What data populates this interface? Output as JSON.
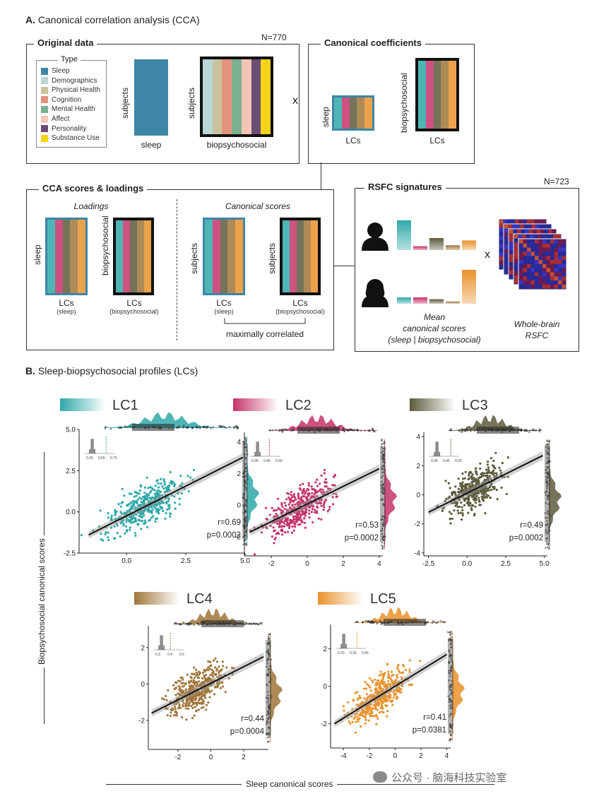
{
  "sectionA": {
    "letter": "A.",
    "title": "Canonical correlation analysis (CCA)",
    "original_data": {
      "title": "Original data",
      "n_label": "N=770",
      "legend_title": "Type",
      "legend": [
        {
          "label": "Sleep",
          "color": "#3d86a6"
        },
        {
          "label": "Demographics",
          "color": "#b9d6d6"
        },
        {
          "label": "Physical Health",
          "color": "#c9c39d"
        },
        {
          "label": "Cognition",
          "color": "#e3937c"
        },
        {
          "label": "Mental Health",
          "color": "#7bb191"
        },
        {
          "label": "Affect",
          "color": "#f3c5b4"
        },
        {
          "label": "Personality",
          "color": "#6a4d74"
        },
        {
          "label": "Substance Use",
          "color": "#f4d318"
        }
      ],
      "subjects_label": "subjects",
      "sleep_label": "sleep",
      "biopsychosocial_label": "biopsychosocial"
    },
    "times_symbol": "x",
    "canonical_coefficients": {
      "title": "Canonical coefficients",
      "sleep_label": "sleep",
      "biopsychosocial_label": "biopsychosocial",
      "lcs_label": "LCs"
    },
    "cca_scores": {
      "title": "CCA scores & loadings",
      "loadings_label": "Loadings",
      "canonical_scores_label": "Canonical scores",
      "sleep_label": "sleep",
      "biopsychosocial_label": "biopsychosocial",
      "subjects_label": "subjects",
      "lcs_label": "LCs",
      "sleep_sub": "(sleep)",
      "bio_sub": "(biopsychosocial)",
      "maximally_correlated": "maximally correlated"
    },
    "rsfc": {
      "title": "RSFC signatures",
      "n_label": "N=723",
      "times_symbol": "x",
      "mean_label_1": "Mean",
      "mean_label_2": "canonical scores",
      "mean_label_3": "(sleep | biopsychosocial)",
      "wb_label_1": "Whole-brain",
      "wb_label_2": "RSFC",
      "person1_bars": [
        0.62,
        0.08,
        0.25,
        0.1,
        0.2
      ],
      "person2_bars": [
        0.14,
        0.14,
        0.1,
        0.05,
        0.75
      ]
    },
    "lc_colors": [
      "#2fa8a8",
      "#c4346b",
      "#5d5a3c",
      "#a0763a",
      "#e9922c"
    ]
  },
  "sectionB": {
    "letter": "B.",
    "title": "Sleep-biopsychosocial profiles (LCs)",
    "y_axis_label": "Biopsychosocial canonical scores",
    "x_axis_label": "Sleep canonical scores",
    "watermark": "公众号 · 脑海科技实验室"
  },
  "chart_data": [
    {
      "type": "scatter",
      "title": "LC1",
      "color": "#2fa8a8",
      "r": "r=0.69",
      "p": "p=0.0002",
      "xlim": [
        -2,
        5
      ],
      "ylim": [
        -2.5,
        5
      ],
      "xticks": [
        0.0,
        2.5,
        5.0
      ],
      "xtick_labels": [
        "0.0",
        "2.5",
        "5.0"
      ],
      "yticks": [
        -2.5,
        0.0,
        2.5,
        5.0
      ],
      "ytick_labels": [
        "-2.5",
        "0.0",
        "2.5",
        "5.0"
      ],
      "line": {
        "x": [
          -1.6,
          4.9
        ],
        "y": [
          -1.4,
          3.3
        ]
      },
      "inset_ticks": [
        "0.35",
        "0.55",
        "0.75"
      ],
      "inset_dashed_frac": 0.72
    },
    {
      "type": "scatter",
      "title": "LC2",
      "color": "#c4346b",
      "r": "r=0.53",
      "p": "p=0.0002",
      "xlim": [
        -3.5,
        4.2
      ],
      "ylim": [
        -3.2,
        4.6
      ],
      "xticks": [
        -2,
        0,
        2,
        4
      ],
      "xtick_labels": [
        "-2",
        "0",
        "2",
        "4"
      ],
      "yticks": [
        -2,
        0,
        2,
        4
      ],
      "ytick_labels": [
        "-2",
        "0",
        "2",
        "4"
      ],
      "line": {
        "x": [
          -3.2,
          4.0
        ],
        "y": [
          -1.7,
          2.3
        ]
      },
      "inset_ticks": [
        "0.35",
        "0.45",
        "0.55"
      ],
      "inset_dashed_frac": 0.65
    },
    {
      "type": "scatter",
      "title": "LC3",
      "color": "#5d5a3c",
      "r": "r=0.49",
      "p": "p=0.0002",
      "xlim": [
        -2.8,
        5.2
      ],
      "ylim": [
        -4.2,
        4.3
      ],
      "xticks": [
        -2.5,
        0.0,
        2.5,
        5.0
      ],
      "xtick_labels": [
        "-2.5",
        "0.0",
        "2.5",
        "5.0"
      ],
      "yticks": [
        -4,
        -2,
        0,
        2,
        4
      ],
      "ytick_labels": [
        "-4",
        "-2",
        "0",
        "2",
        "4"
      ],
      "line": {
        "x": [
          -2.5,
          4.9
        ],
        "y": [
          -1.2,
          2.7
        ]
      },
      "inset_ticks": [
        "0.35",
        "0.45",
        "0.55"
      ],
      "inset_dashed_frac": 0.72
    },
    {
      "type": "scatter",
      "title": "LC4",
      "color": "#a0763a",
      "r": "r=0.44",
      "p": "p=0.0004",
      "xlim": [
        -3.8,
        3.5
      ],
      "ylim": [
        -3.6,
        3.2
      ],
      "xticks": [
        -2,
        0,
        2
      ],
      "xtick_labels": [
        "-2",
        "0",
        "2"
      ],
      "yticks": [
        -2,
        0,
        2
      ],
      "ytick_labels": [
        "-2",
        "0",
        "2"
      ],
      "line": {
        "x": [
          -3.6,
          3.2
        ],
        "y": [
          -1.6,
          1.5
        ]
      },
      "inset_ticks": [
        "0.3",
        "0.4",
        "0.5"
      ],
      "inset_dashed_frac": 0.55
    },
    {
      "type": "scatter",
      "title": "LC5",
      "color": "#e9922c",
      "r": "r=0.41",
      "p": "p=0.0381",
      "xlim": [
        -5,
        4.3
      ],
      "ylim": [
        -3.3,
        3.3
      ],
      "xticks": [
        -4,
        -2,
        0,
        2,
        4
      ],
      "xtick_labels": [
        "-4",
        "-2",
        "0",
        "2",
        "4"
      ],
      "yticks": [
        -2,
        0,
        2
      ],
      "ytick_labels": [
        "-2",
        "0",
        "2"
      ],
      "line": {
        "x": [
          -4.7,
          4.0
        ],
        "y": [
          -2.0,
          1.7
        ]
      },
      "inset_ticks": [
        "0.25",
        "0.35",
        "0.45"
      ],
      "inset_dashed_frac": 0.7
    }
  ]
}
